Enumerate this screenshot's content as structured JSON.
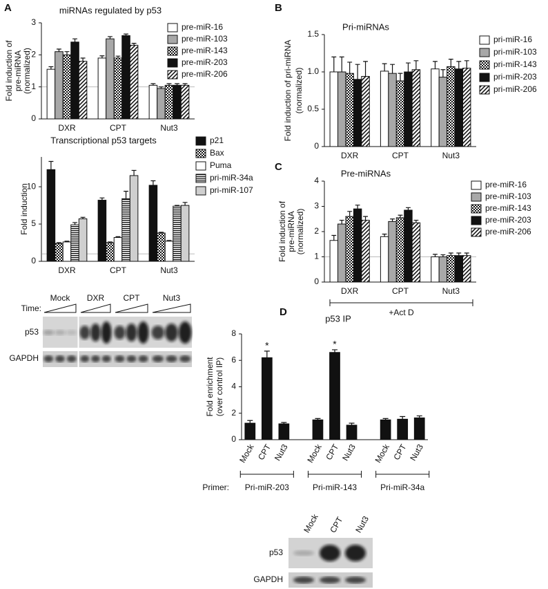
{
  "panels": [
    "A",
    "B",
    "C",
    "D"
  ],
  "chart_data": [
    {
      "type": "bar",
      "title": "miRNAs regulated by p53",
      "ylabel": [
        "Fold induction of",
        "pre-miRNA",
        "(normalized)"
      ],
      "categories": [
        "DXR",
        "CPT",
        "Nut3"
      ],
      "ylim": [
        0,
        3
      ],
      "yticks": [
        0,
        1,
        2,
        3
      ],
      "refline": 1,
      "legend": true,
      "series": [
        {
          "name": "pre-miR-16",
          "fill": "white",
          "values": [
            1.55,
            1.9,
            1.05
          ],
          "errors": [
            0.08,
            0.07,
            0.05
          ]
        },
        {
          "name": "pre-miR-103",
          "fill": "gray",
          "values": [
            2.1,
            2.5,
            0.95
          ],
          "errors": [
            0.08,
            0.07,
            0.05
          ]
        },
        {
          "name": "pre-miR-143",
          "fill": "checker",
          "values": [
            2.0,
            1.9,
            1.05
          ],
          "errors": [
            0.1,
            0.06,
            0.05
          ]
        },
        {
          "name": "pre-miR-203",
          "fill": "black",
          "values": [
            2.4,
            2.6,
            1.05
          ],
          "errors": [
            0.1,
            0.05,
            0.05
          ]
        },
        {
          "name": "pre-miR-206",
          "fill": "hatch",
          "values": [
            1.8,
            2.3,
            1.05
          ],
          "errors": [
            0.1,
            0.06,
            0.05
          ]
        }
      ]
    },
    {
      "type": "bar",
      "title": "Transcriptional p53 targets",
      "ylabel": [
        "Fold induction"
      ],
      "categories": [
        "DXR",
        "CPT",
        "Nut3"
      ],
      "ylim": [
        0,
        14
      ],
      "yticks": [
        0,
        5,
        10
      ],
      "refline": 1,
      "legend": true,
      "series": [
        {
          "name": "p21",
          "fill": "black",
          "values": [
            12.3,
            8.2,
            10.2
          ],
          "errors": [
            1.1,
            0.3,
            0.6
          ]
        },
        {
          "name": "Bax",
          "fill": "checker",
          "values": [
            2.4,
            2.5,
            3.8
          ],
          "errors": [
            0.1,
            0.1,
            0.1
          ]
        },
        {
          "name": "Puma",
          "fill": "white",
          "values": [
            2.6,
            3.2,
            2.7
          ],
          "errors": [
            0.1,
            0.1,
            0.1
          ]
        },
        {
          "name": "pri-miR-34a",
          "fill": "stripes",
          "values": [
            4.9,
            8.4,
            7.4
          ],
          "errors": [
            0.3,
            1.0,
            0.1
          ]
        },
        {
          "name": "pri-miR-107",
          "fill": "lightgray",
          "values": [
            5.7,
            11.5,
            7.5
          ],
          "errors": [
            0.2,
            0.7,
            0.4
          ]
        }
      ]
    },
    {
      "type": "bar",
      "title": "Pri-miRNAs",
      "ylabel": [
        "Fold induction of pri-miRNA",
        "(normalized)"
      ],
      "categories": [
        "DXR",
        "CPT",
        "Nut3"
      ],
      "ylim": [
        0,
        1.5
      ],
      "yticks": [
        0,
        0.5,
        {
          "value": 1,
          "label": "1.0"
        },
        1.5
      ],
      "legend": true,
      "series": [
        {
          "name": "pri-miR-16",
          "fill": "white",
          "values": [
            1.0,
            1.01,
            1.04
          ],
          "errors": [
            0.2,
            0.1,
            0.1
          ]
        },
        {
          "name": "pri-miR-103",
          "fill": "gray",
          "values": [
            1.0,
            0.98,
            0.93
          ],
          "errors": [
            0.2,
            0.12,
            0.1
          ]
        },
        {
          "name": "pri-miR-143",
          "fill": "checker",
          "values": [
            0.98,
            0.88,
            1.07
          ],
          "errors": [
            0.15,
            0.1,
            0.1
          ]
        },
        {
          "name": "pri-miR-203",
          "fill": "black",
          "values": [
            0.9,
            1.0,
            1.04
          ],
          "errors": [
            0.2,
            0.12,
            0.1
          ]
        },
        {
          "name": "pri-miR-206",
          "fill": "hatch",
          "values": [
            0.94,
            1.03,
            1.05
          ],
          "errors": [
            0.2,
            0.12,
            0.1
          ]
        }
      ]
    },
    {
      "type": "bar",
      "title": "Pre-miRNAs",
      "ylabel": [
        "Fold induction of",
        "pre-miRNA",
        "(normalized)"
      ],
      "categories": [
        "DXR",
        "CPT",
        "Nut3"
      ],
      "ylim": [
        0,
        4
      ],
      "yticks": [
        0,
        1,
        2,
        3,
        4
      ],
      "refline": 1,
      "legend": true,
      "footnote": "+Act D",
      "series": [
        {
          "name": "pre-miR-16",
          "fill": "white",
          "values": [
            1.65,
            1.8,
            1.0
          ],
          "errors": [
            0.2,
            0.1,
            0.1
          ]
        },
        {
          "name": "pre-miR-103",
          "fill": "gray",
          "values": [
            2.3,
            2.4,
            1.0
          ],
          "errors": [
            0.15,
            0.1,
            0.08
          ]
        },
        {
          "name": "pre-miR-143",
          "fill": "checker",
          "values": [
            2.6,
            2.55,
            1.05
          ],
          "errors": [
            0.2,
            0.1,
            0.1
          ]
        },
        {
          "name": "pre-miR-203",
          "fill": "black",
          "values": [
            2.9,
            2.85,
            1.05
          ],
          "errors": [
            0.15,
            0.1,
            0.1
          ]
        },
        {
          "name": "pre-miR-206",
          "fill": "hatch",
          "values": [
            2.45,
            2.35,
            1.05
          ],
          "errors": [
            0.15,
            0.1,
            0.1
          ]
        }
      ]
    },
    {
      "type": "bar",
      "title": "p53 IP",
      "ylabel": [
        "Fold enrichment",
        "(over control IP)"
      ],
      "categories": [
        "Mock",
        "CPT",
        "Nut3",
        "Mock",
        "CPT",
        "Nut3",
        "Mock",
        "CPT",
        "Nut3"
      ],
      "groups": [
        "Pri-miR-203",
        "Pri-miR-143",
        "Pri-miR-34a"
      ],
      "group_title": "Primer:",
      "ylim": [
        0,
        8
      ],
      "yticks": [
        0,
        2,
        4,
        6,
        8
      ],
      "fill": "black",
      "values": [
        1.25,
        6.2,
        1.2,
        1.5,
        6.6,
        1.1,
        1.5,
        1.55,
        1.65
      ],
      "errors": [
        0.2,
        0.5,
        0.1,
        0.1,
        0.2,
        0.15,
        0.1,
        0.2,
        0.15
      ],
      "annotations": [
        {
          "category": 1,
          "text": "*"
        },
        {
          "category": 4,
          "text": "*"
        }
      ]
    }
  ],
  "blots": [
    {
      "groups": [
        "Mock",
        "DXR",
        "CPT",
        "Nut3"
      ],
      "time": "Time:",
      "rows": [
        "p53",
        "GAPDH"
      ]
    },
    {
      "lanes": [
        "Mock",
        "CPT",
        "Nut3"
      ],
      "rows": [
        "p53",
        "GAPDH"
      ]
    }
  ]
}
